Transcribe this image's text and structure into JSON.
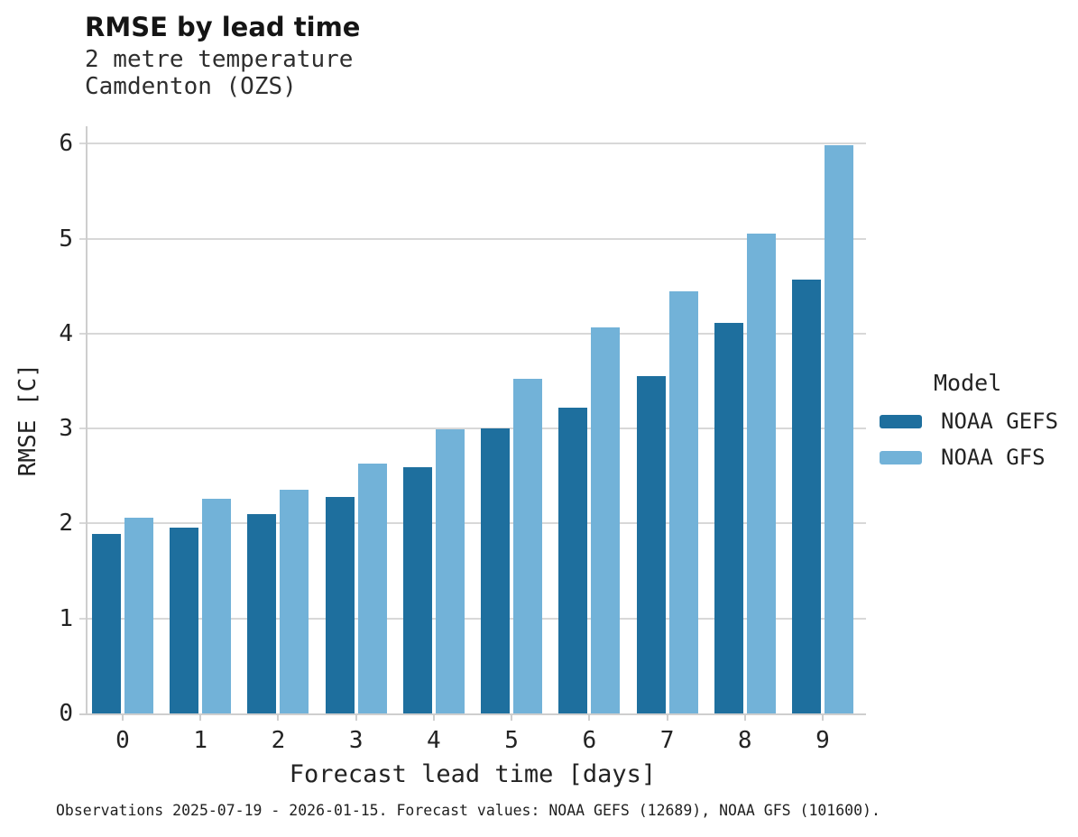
{
  "title": "RMSE by lead time",
  "subtitle_line1": "2 metre temperature",
  "subtitle_line2": "Camdenton (OZS)",
  "footer": "Observations 2025-07-19 - 2026-01-15. Forecast values: NOAA GEFS (12689), NOAA GFS (101600).",
  "legend": {
    "title": "Model",
    "items": [
      {
        "label": "NOAA GEFS",
        "color": "#1e6f9e"
      },
      {
        "label": "NOAA GFS",
        "color": "#72b2d8"
      }
    ]
  },
  "colors": {
    "bar_dark_blue": "#1e6f9e",
    "bar_light_blue": "#72b2d8",
    "gridline": "#d8d8d8",
    "axis_line": "#cecece"
  },
  "chart_data": {
    "type": "bar",
    "title": "RMSE by lead time",
    "subtitle": "2 metre temperature, Camdenton (OZS)",
    "xlabel": "Forecast lead time [days]",
    "ylabel": "RMSE [C]",
    "categories": [
      0,
      1,
      2,
      3,
      4,
      5,
      6,
      7,
      8,
      9
    ],
    "series": [
      {
        "name": "NOAA GEFS",
        "color": "#1e6f9e",
        "values": [
          1.89,
          1.96,
          2.1,
          2.28,
          2.59,
          3.0,
          3.22,
          3.55,
          4.11,
          4.57
        ]
      },
      {
        "name": "NOAA GFS",
        "color": "#72b2d8",
        "values": [
          2.06,
          2.26,
          2.36,
          2.63,
          2.99,
          3.52,
          4.06,
          4.44,
          5.05,
          5.98
        ]
      }
    ],
    "ylim": [
      0,
      6
    ],
    "yticks": [
      0,
      1,
      2,
      3,
      4,
      5,
      6
    ],
    "grid": true,
    "legend_position": "right",
    "caption": "Observations 2025-07-19 - 2026-01-15. Forecast values: NOAA GEFS (12689), NOAA GFS (101600)."
  }
}
